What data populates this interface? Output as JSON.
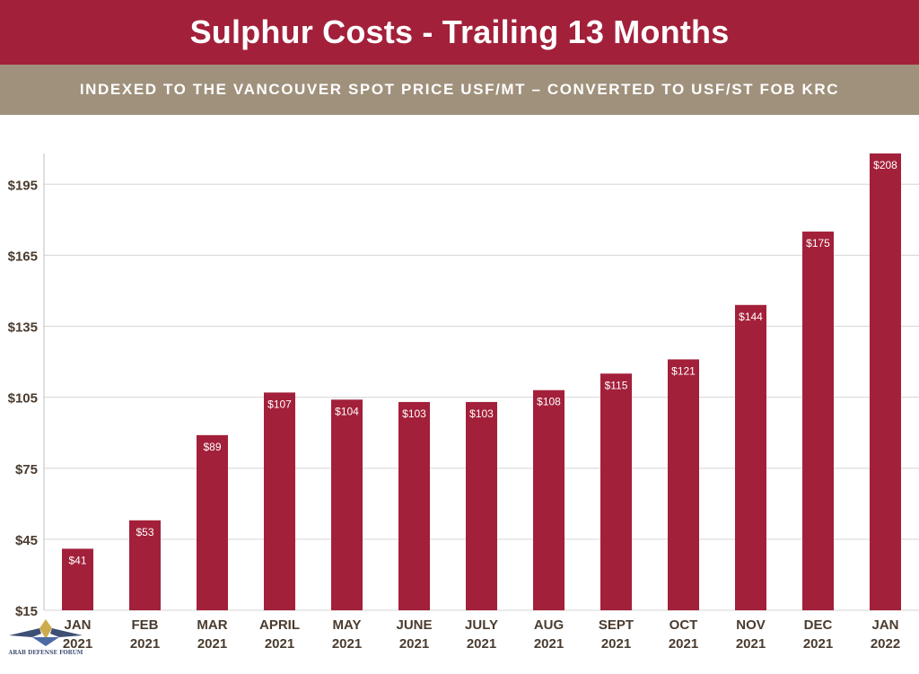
{
  "header": {
    "title": "Sulphur Costs - Trailing 13 Months",
    "subtitle": "INDEXED TO THE VANCOUVER SPOT PRICE USF/MT – CONVERTED TO USF/ST FOB KRC"
  },
  "colors": {
    "bar": "#a3203a",
    "title_bg": "#a3203a",
    "subtitle_bg": "#a0917c",
    "axis_text": "#4a3b2f"
  },
  "watermark": {
    "text": "ARAB DEFENSE FORUM"
  },
  "chart_data": {
    "type": "bar",
    "categories": [
      [
        "JAN",
        "2021"
      ],
      [
        "FEB",
        "2021"
      ],
      [
        "MAR",
        "2021"
      ],
      [
        "APRIL",
        "2021"
      ],
      [
        "MAY",
        "2021"
      ],
      [
        "JUNE",
        "2021"
      ],
      [
        "JULY",
        "2021"
      ],
      [
        "AUG",
        "2021"
      ],
      [
        "SEPT",
        "2021"
      ],
      [
        "OCT",
        "2021"
      ],
      [
        "NOV",
        "2021"
      ],
      [
        "DEC",
        "2021"
      ],
      [
        "JAN",
        "2022"
      ]
    ],
    "values": [
      41,
      53,
      89,
      107,
      104,
      103,
      103,
      108,
      115,
      121,
      144,
      175,
      208
    ],
    "value_labels": [
      "$41",
      "$53",
      "$89",
      "$107",
      "$104",
      "$103",
      "$103",
      "$108",
      "$115",
      "$121",
      "$144",
      "$175",
      "$208"
    ],
    "y_ticks": [
      15,
      45,
      75,
      105,
      135,
      165,
      195
    ],
    "y_tick_labels": [
      "$15",
      "$45",
      "$75",
      "$105",
      "$135",
      "$165",
      "$195"
    ],
    "ylim": [
      15,
      208
    ],
    "grid": true,
    "legend": "none"
  }
}
